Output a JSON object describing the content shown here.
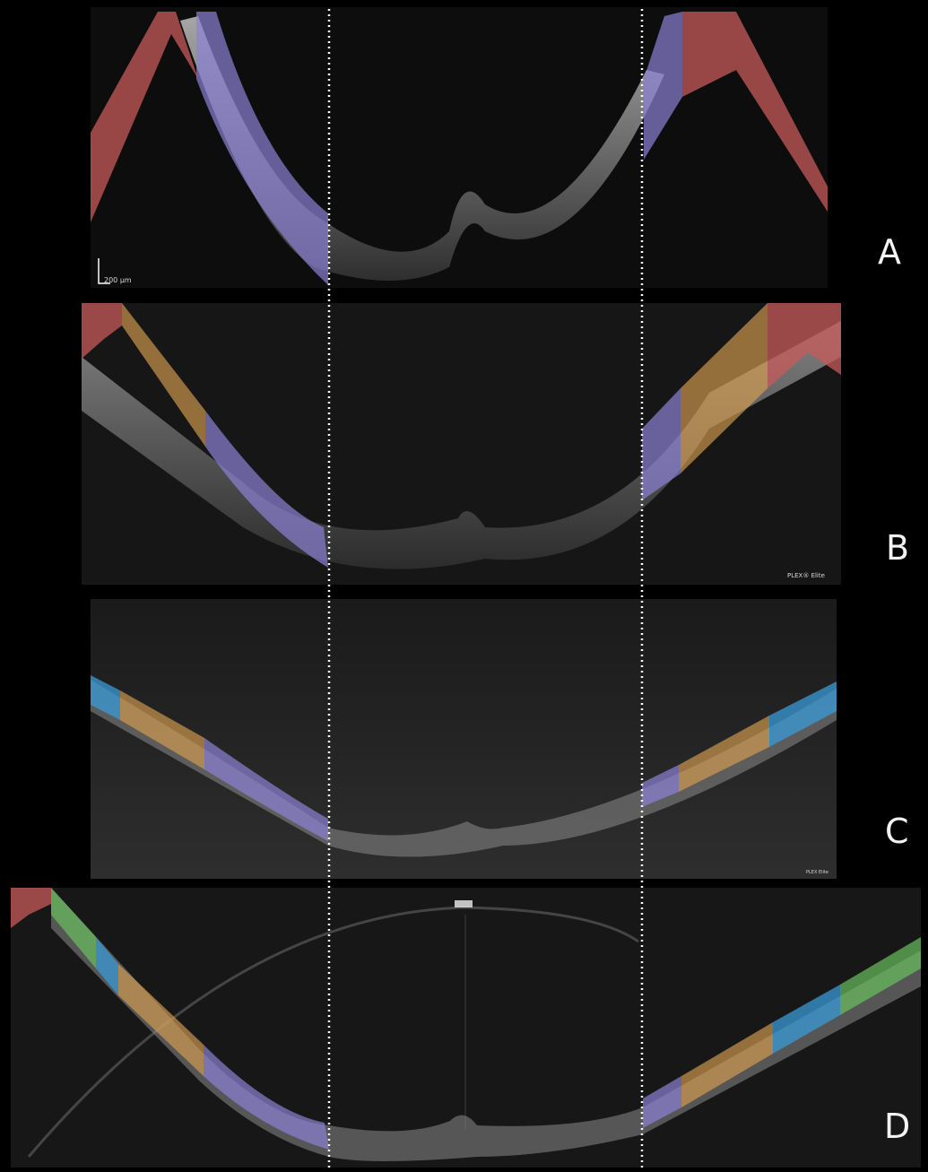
{
  "panels": [
    {
      "id": "A",
      "letter": "A",
      "scale_label": "200 µm"
    },
    {
      "id": "B",
      "letter": "B",
      "device_label": "PLEX® Elite"
    },
    {
      "id": "C",
      "letter": "C",
      "device_label": "PLEX Elite"
    },
    {
      "id": "D",
      "letter": "D"
    }
  ],
  "colors": {
    "red": "#c85a5a",
    "purple": "#8c82d6",
    "orange": "#d8a050",
    "blue": "#3a9ad6",
    "green": "#6ac060",
    "guide": "#ffffff",
    "tissue": "#9a9a9a",
    "background": "#000000"
  }
}
